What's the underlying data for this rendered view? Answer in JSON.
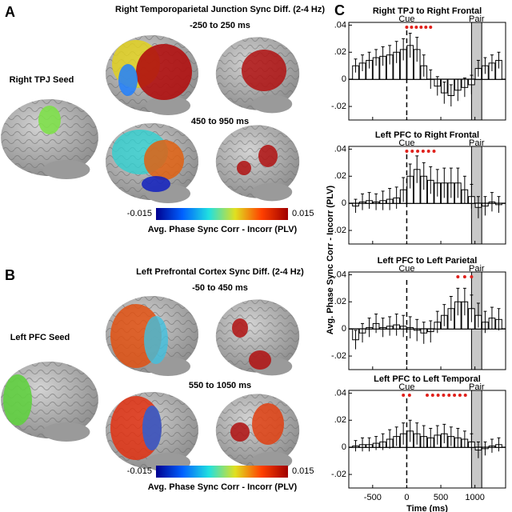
{
  "panel_a": {
    "label": "A",
    "title": "Right Temporoparietal Junction Sync Diff. (2-4 Hz)",
    "windows": [
      "-250 to 250 ms",
      "450 to 950 ms"
    ],
    "seed": "Right TPJ Seed",
    "colorbar": {
      "min": -0.015,
      "max": 0.015,
      "label": "Avg. Phase Sync Corr - Incorr (PLV)"
    }
  },
  "panel_b": {
    "label": "B",
    "title": "Left Prefrontal Cortex Sync Diff. (2-4 Hz)",
    "windows": [
      "-50 to 450 ms",
      "550 to 1050 ms"
    ],
    "seed": "Left PFC Seed",
    "colorbar": {
      "min": -0.015,
      "max": 0.015,
      "label": "Avg. Phase Sync Corr - Incorr (PLV)"
    }
  },
  "panel_c": {
    "label": "C",
    "y_label": "Avg. Phase Sync Corr - Incorr (PLV)"
  },
  "chart_data": [
    {
      "type": "bar",
      "title": "Right TPJ to Right Frontal",
      "cue_label": "Cue",
      "cue_x": 0,
      "pair_label": "Pair",
      "pair_range": [
        950,
        1100
      ],
      "x": [
        -750,
        -650,
        -550,
        -450,
        -350,
        -250,
        -150,
        -50,
        50,
        150,
        250,
        350,
        450,
        550,
        650,
        750,
        850,
        950,
        1050,
        1150,
        1250,
        1350
      ],
      "values": [
        0.01,
        0.012,
        0.014,
        0.016,
        0.017,
        0.018,
        0.02,
        0.022,
        0.025,
        0.022,
        0.01,
        0,
        -0.005,
        -0.01,
        -0.012,
        -0.008,
        -0.006,
        -0.004,
        0.008,
        0.01,
        0.012,
        0.014
      ],
      "errors": [
        0.005,
        0.006,
        0.006,
        0.006,
        0.007,
        0.007,
        0.008,
        0.008,
        0.009,
        0.009,
        0.008,
        0.007,
        0.007,
        0.008,
        0.008,
        0.008,
        0.007,
        0.007,
        0.006,
        0.006,
        0.006,
        0.006
      ],
      "significant": [
        0,
        70,
        140,
        210,
        280,
        350
      ],
      "sig_color": "#e0201b",
      "xlim": [
        -850,
        1450
      ],
      "ylim": [
        -0.03,
        0.042
      ],
      "xticks": [
        -500,
        0,
        500,
        1000
      ],
      "yticks": [
        {
          "value": -0.02,
          "label": "-.02"
        },
        0,
        {
          "value": 0.02,
          "label": ".02"
        },
        {
          "value": 0.04,
          "label": ".04"
        }
      ]
    },
    {
      "type": "bar",
      "title": "Left PFC  to Right Frontal",
      "cue_label": "Cue",
      "cue_x": 0,
      "pair_label": "Pair",
      "pair_range": [
        950,
        1100
      ],
      "x": [
        -750,
        -650,
        -550,
        -450,
        -350,
        -250,
        -150,
        -50,
        50,
        150,
        250,
        350,
        450,
        550,
        650,
        750,
        850,
        950,
        1050,
        1150,
        1250,
        1350
      ],
      "values": [
        -0.002,
        0.001,
        0.002,
        0.001,
        0.002,
        0.003,
        0.004,
        0.01,
        0.02,
        0.025,
        0.02,
        0.017,
        0.015,
        0.015,
        0.015,
        0.015,
        0.01,
        0.005,
        -0.003,
        -0.002,
        0.001,
        -0.001
      ],
      "errors": [
        0.005,
        0.006,
        0.006,
        0.006,
        0.007,
        0.008,
        0.008,
        0.009,
        0.009,
        0.01,
        0.01,
        0.01,
        0.01,
        0.011,
        0.011,
        0.011,
        0.01,
        0.009,
        0.008,
        0.007,
        0.007,
        0.006
      ],
      "significant": [
        0,
        80,
        160,
        240,
        320,
        400
      ],
      "sig_color": "#e0201b",
      "xlim": [
        -850,
        1450
      ],
      "ylim": [
        -0.03,
        0.042
      ],
      "xticks": [
        -500,
        0,
        500,
        1000
      ],
      "yticks": [
        {
          "value": -0.02,
          "label": "-.02"
        },
        0,
        {
          "value": 0.02,
          "label": ".02"
        },
        {
          "value": 0.04,
          "label": ".04"
        }
      ]
    },
    {
      "type": "bar",
      "title": "Left PFC to Left Parietal",
      "cue_label": "Cue",
      "cue_x": 0,
      "pair_label": "Pair",
      "pair_range": [
        950,
        1100
      ],
      "x": [
        -750,
        -650,
        -550,
        -450,
        -350,
        -250,
        -150,
        -50,
        50,
        150,
        250,
        350,
        450,
        550,
        650,
        750,
        850,
        950,
        1050,
        1150,
        1250,
        1350
      ],
      "values": [
        -0.008,
        -0.003,
        0.001,
        0.004,
        0.001,
        0.002,
        0.003,
        0.002,
        0.001,
        -0.001,
        -0.003,
        -0.002,
        0.005,
        0.01,
        0.015,
        0.02,
        0.02,
        0.015,
        0.01,
        0.005,
        0.008,
        0.007
      ],
      "errors": [
        0.007,
        0.007,
        0.007,
        0.007,
        0.007,
        0.007,
        0.008,
        0.008,
        0.008,
        0.008,
        0.008,
        0.008,
        0.008,
        0.008,
        0.009,
        0.01,
        0.01,
        0.01,
        0.009,
        0.008,
        0.008,
        0.008
      ],
      "significant": [
        750,
        850,
        950
      ],
      "sig_color": "#e0201b",
      "xlim": [
        -850,
        1450
      ],
      "ylim": [
        -0.03,
        0.042
      ],
      "xticks": [
        -500,
        0,
        500,
        1000
      ],
      "yticks": [
        {
          "value": -0.02,
          "label": "-.02"
        },
        0,
        {
          "value": 0.02,
          "label": ".02"
        },
        {
          "value": 0.04,
          "label": ".04"
        }
      ]
    },
    {
      "type": "bar",
      "title": "Left PFC to Left Temporal",
      "cue_label": "Cue",
      "cue_x": 0,
      "pair_label": "Pair",
      "pair_range": [
        950,
        1100
      ],
      "x_label": "Time (ms)",
      "x": [
        -750,
        -650,
        -550,
        -450,
        -350,
        -250,
        -150,
        -50,
        50,
        150,
        250,
        350,
        450,
        550,
        650,
        750,
        850,
        950,
        1050,
        1150,
        1250,
        1350
      ],
      "values": [
        0.001,
        0.002,
        0.002,
        0.003,
        0.004,
        0.006,
        0.008,
        0.01,
        0.012,
        0.01,
        0.008,
        0.007,
        0.009,
        0.01,
        0.008,
        0.007,
        0.006,
        0.004,
        -0.002,
        -0.001,
        0.001,
        0.002
      ],
      "errors": [
        0.004,
        0.005,
        0.005,
        0.005,
        0.006,
        0.007,
        0.007,
        0.008,
        0.008,
        0.008,
        0.008,
        0.007,
        0.007,
        0.007,
        0.007,
        0.007,
        0.006,
        0.006,
        0.006,
        0.005,
        0.005,
        0.005
      ],
      "significant": [
        -50,
        40,
        300,
        380,
        460,
        540,
        620,
        700,
        780,
        860
      ],
      "sig_color": "#e0201b",
      "xlim": [
        -850,
        1450
      ],
      "ylim": [
        -0.03,
        0.042
      ],
      "xticks": [
        -500,
        0,
        500,
        1000
      ],
      "yticks": [
        {
          "value": -0.02,
          "label": "-.02"
        },
        0,
        {
          "value": 0.02,
          "label": ".02"
        },
        {
          "value": 0.04,
          "label": ".04"
        }
      ]
    }
  ]
}
